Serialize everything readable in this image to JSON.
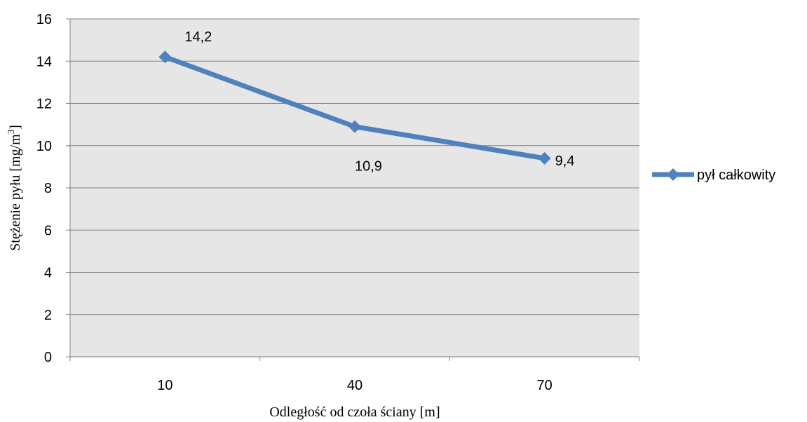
{
  "chart_data": {
    "type": "line",
    "categories": [
      "10",
      "40",
      "70"
    ],
    "series": [
      {
        "name": "pył całkowity",
        "values": [
          14.2,
          10.9,
          9.4
        ],
        "color": "#4F81BD"
      }
    ],
    "data_labels": [
      "14,2",
      "10,9",
      "9,4"
    ],
    "xlabel": "Odległość od czoła ściany [m]",
    "ylabel": "Stężenie pyłu [mg/m",
    "ylabel_superscript": "3",
    "ylabel_end": "]",
    "ylim": [
      0,
      16
    ],
    "yticks": [
      0,
      2,
      4,
      6,
      8,
      10,
      12,
      14,
      16
    ],
    "grid": true,
    "plot_background": "#E6E6E6",
    "legend_position": "right"
  }
}
